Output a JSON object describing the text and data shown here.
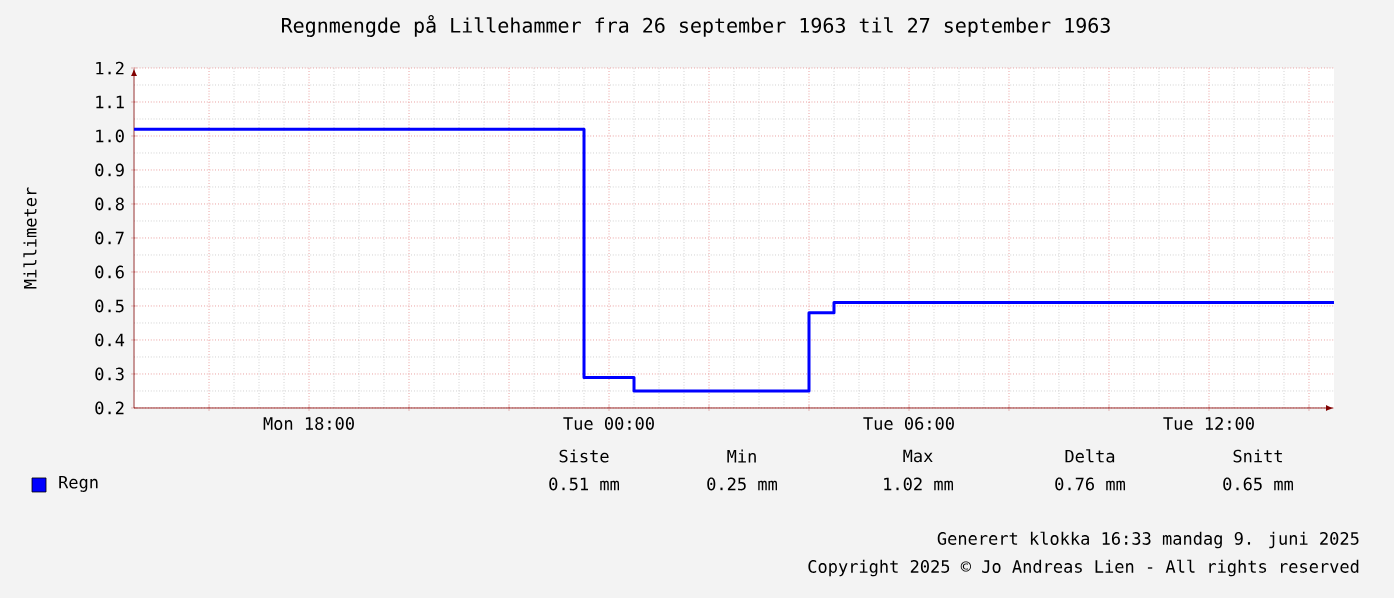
{
  "chart_data": {
    "type": "step",
    "title": "Regnmengde på Lillehammer fra 26 september 1963 til 27 september 1963",
    "ylabel": "Millimeter",
    "series": [
      {
        "name": "Regn",
        "color": "#0000ff",
        "x": [
          "1963-09-26T14:30",
          "1963-09-26T23:30",
          "1963-09-27T00:30",
          "1963-09-27T04:00",
          "1963-09-27T04:30",
          "1963-09-27T14:30"
        ],
        "values": [
          1.02,
          0.29,
          0.25,
          0.48,
          0.51,
          0.51
        ]
      }
    ],
    "xlim": [
      "1963-09-26T14:30",
      "1963-09-27T14:30"
    ],
    "xticks": [
      {
        "value": "1963-09-26T16:00",
        "label": null
      },
      {
        "value": "1963-09-26T18:00",
        "label": "Mon 18:00"
      },
      {
        "value": "1963-09-26T20:00",
        "label": null
      },
      {
        "value": "1963-09-26T22:00",
        "label": null
      },
      {
        "value": "1963-09-27T00:00",
        "label": "Tue 00:00"
      },
      {
        "value": "1963-09-27T02:00",
        "label": null
      },
      {
        "value": "1963-09-27T04:00",
        "label": null
      },
      {
        "value": "1963-09-27T06:00",
        "label": "Tue 06:00"
      },
      {
        "value": "1963-09-27T08:00",
        "label": null
      },
      {
        "value": "1963-09-27T10:00",
        "label": null
      },
      {
        "value": "1963-09-27T12:00",
        "label": "Tue 12:00"
      },
      {
        "value": "1963-09-27T14:00",
        "label": null
      }
    ],
    "ylim": [
      0.2,
      1.2
    ],
    "yticks": [
      {
        "value": 0.2,
        "label": "0.2"
      },
      {
        "value": 0.3,
        "label": "0.3"
      },
      {
        "value": 0.4,
        "label": "0.4"
      },
      {
        "value": 0.5,
        "label": "0.5"
      },
      {
        "value": 0.6,
        "label": "0.6"
      },
      {
        "value": 0.7,
        "label": "0.7"
      },
      {
        "value": 0.8,
        "label": "0.8"
      },
      {
        "value": 0.9,
        "label": "0.9"
      },
      {
        "value": 1.0,
        "label": "1.0"
      },
      {
        "value": 1.1,
        "label": "1.1"
      },
      {
        "value": 1.2,
        "label": "1.2"
      }
    ],
    "grid": true,
    "legend": "bottom left",
    "line_style": "solid",
    "marker": "none",
    "annotations": [
      "Siste",
      "Min",
      "Max",
      "Delta",
      "Snitt",
      "0.51 mm",
      "0.25 mm",
      "1.02 mm",
      "0.76 mm",
      "0.65 mm",
      "Generert klokka 16:33 mandag 9. juni 2025",
      "Copyright 2025 © Jo Andreas Lien - All rights reserved"
    ]
  }
}
